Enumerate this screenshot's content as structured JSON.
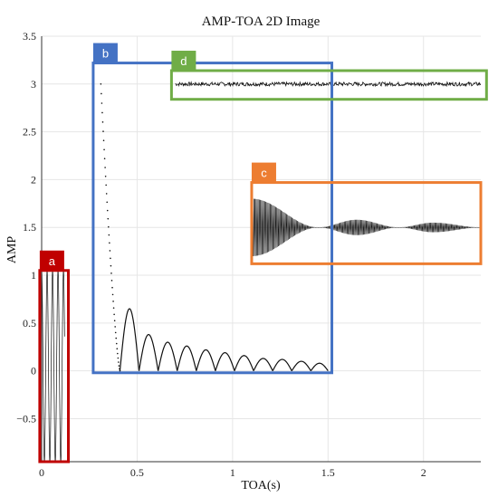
{
  "chart_data": {
    "type": "scatter",
    "title": "AMP-TOA 2D Image",
    "xlabel": "TOA(s)",
    "ylabel": "AMP",
    "xlim": [
      0,
      2.3
    ],
    "ylim": [
      -0.95,
      3.5
    ],
    "xticks": [
      0,
      0.5,
      1,
      1.5,
      2
    ],
    "xtick_labels": [
      "0",
      "0.5",
      "1",
      "1.5",
      "2"
    ],
    "yticks": [
      -0.5,
      0,
      0.5,
      1,
      1.5,
      2,
      2.5,
      3,
      3.5
    ],
    "ytick_labels": [
      "−0.5",
      "0",
      "0.5",
      "1",
      "1.5",
      "2",
      "2.5",
      "3",
      "3.5"
    ],
    "grid": true,
    "series": [
      {
        "name": "",
        "description_points": {
          "oscillation_a": {
            "x_range": [
              0,
              0.12
            ],
            "amp_range": [
              -0.95,
              1.05
            ]
          },
          "decay_b": {
            "x_start": 0.31,
            "y_start": 3.0,
            "x_zero": 0.41,
            "lobes": [
              {
                "x": [
                  0.41,
                  0.51
                ],
                "peak": 0.65
              },
              {
                "x": [
                  0.51,
                  0.61
                ],
                "peak": 0.38
              },
              {
                "x": [
                  0.61,
                  0.71
                ],
                "peak": 0.3
              },
              {
                "x": [
                  0.71,
                  0.81
                ],
                "peak": 0.26
              },
              {
                "x": [
                  0.81,
                  0.91
                ],
                "peak": 0.22
              },
              {
                "x": [
                  0.91,
                  1.01
                ],
                "peak": 0.19
              },
              {
                "x": [
                  1.01,
                  1.11
                ],
                "peak": 0.16
              },
              {
                "x": [
                  1.11,
                  1.21
                ],
                "peak": 0.13
              },
              {
                "x": [
                  1.21,
                  1.31
                ],
                "peak": 0.12
              },
              {
                "x": [
                  1.31,
                  1.41
                ],
                "peak": 0.1
              },
              {
                "x": [
                  1.41,
                  1.5
                ],
                "peak": 0.08
              }
            ]
          },
          "band_c": {
            "x_range": [
              1.1,
              2.3
            ],
            "center": 1.5,
            "envelope": [
              {
                "x": 1.1,
                "half": 0.3
              },
              {
                "x": 1.45,
                "half": 0.0
              },
              {
                "x": 1.65,
                "half": 0.08
              },
              {
                "x": 1.87,
                "half": 0.0
              },
              {
                "x": 2.05,
                "half": 0.05
              },
              {
                "x": 2.3,
                "half": 0.0
              }
            ]
          },
          "line_d": {
            "x_range": [
              0.7,
              2.3
            ],
            "y": 3.0,
            "jitter": 0.02
          }
        }
      }
    ],
    "annotations": [
      {
        "label": "a",
        "color": "#c00000",
        "x_range": [
          -0.01,
          0.14
        ],
        "y_range": [
          -0.95,
          1.05
        ]
      },
      {
        "label": "b",
        "color": "#4472c4",
        "x_range": [
          0.27,
          1.52
        ],
        "y_range": [
          -0.02,
          3.22
        ]
      },
      {
        "label": "c",
        "color": "#ed7d31",
        "x_range": [
          1.1,
          2.3
        ],
        "y_range": [
          1.12,
          1.97
        ]
      },
      {
        "label": "d",
        "color": "#70ad47",
        "x_range": [
          0.68,
          2.33
        ],
        "y_range": [
          2.84,
          3.14
        ]
      }
    ]
  }
}
